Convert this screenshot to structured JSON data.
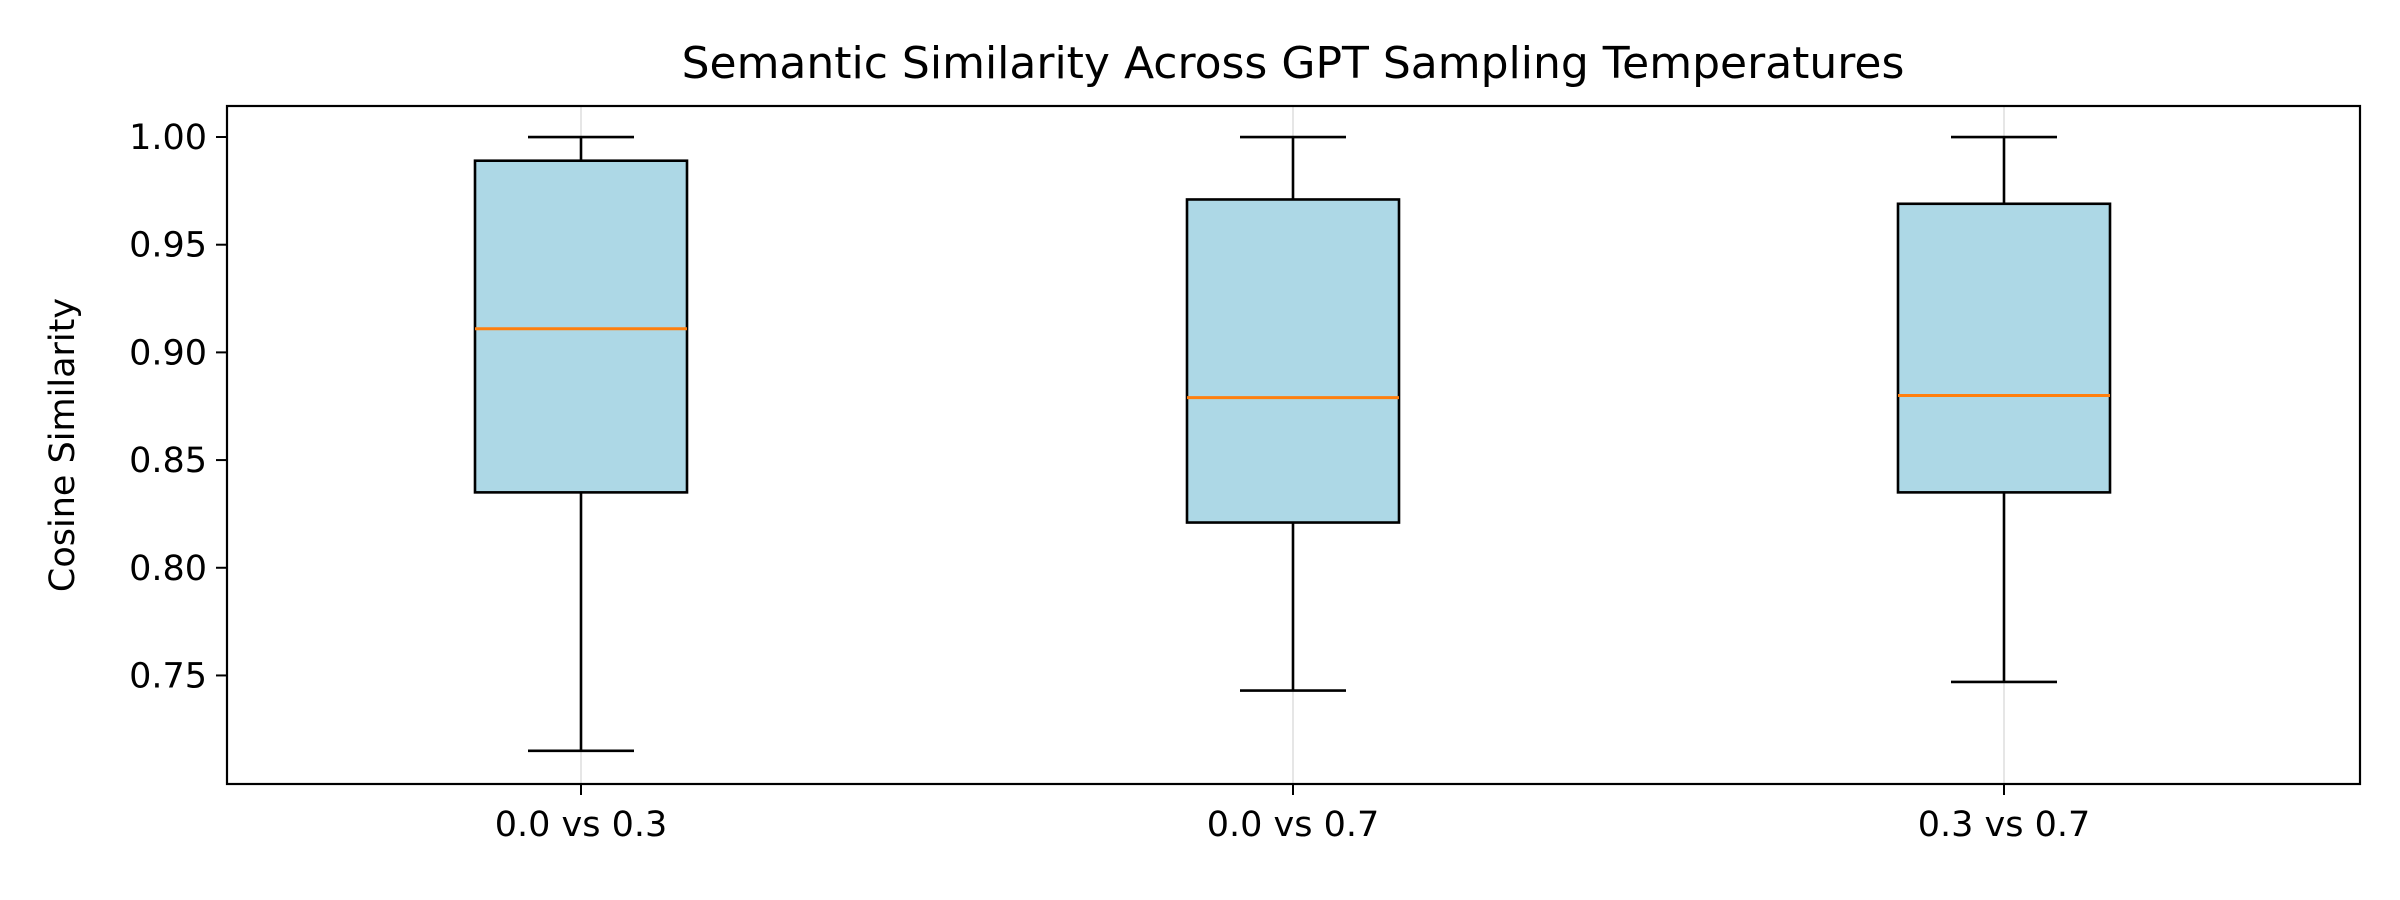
{
  "chart_data": {
    "type": "box",
    "title": "Semantic Similarity Across GPT Sampling Temperatures",
    "xlabel": "",
    "ylabel": "Cosine Similarity",
    "categories": [
      "0.0 vs 0.3",
      "0.0 vs 0.7",
      "0.3 vs 0.7"
    ],
    "boxes": [
      {
        "whisker_low": 0.715,
        "q1": 0.835,
        "median": 0.911,
        "q3": 0.989,
        "whisker_high": 1.0
      },
      {
        "whisker_low": 0.743,
        "q1": 0.821,
        "median": 0.879,
        "q3": 0.971,
        "whisker_high": 1.0
      },
      {
        "whisker_low": 0.747,
        "q1": 0.835,
        "median": 0.88,
        "q3": 0.969,
        "whisker_high": 1.0
      }
    ],
    "yticks": [
      "0.75",
      "0.80",
      "0.85",
      "0.90",
      "0.95",
      "1.00"
    ],
    "ylim": [
      0.6996,
      1.0144
    ],
    "grid": "vertical lines at categories",
    "colors": {
      "box_fill": "#add8e6",
      "median": "#ff7f0e",
      "edge": "#000000",
      "grid": "#e6e6e6"
    }
  }
}
